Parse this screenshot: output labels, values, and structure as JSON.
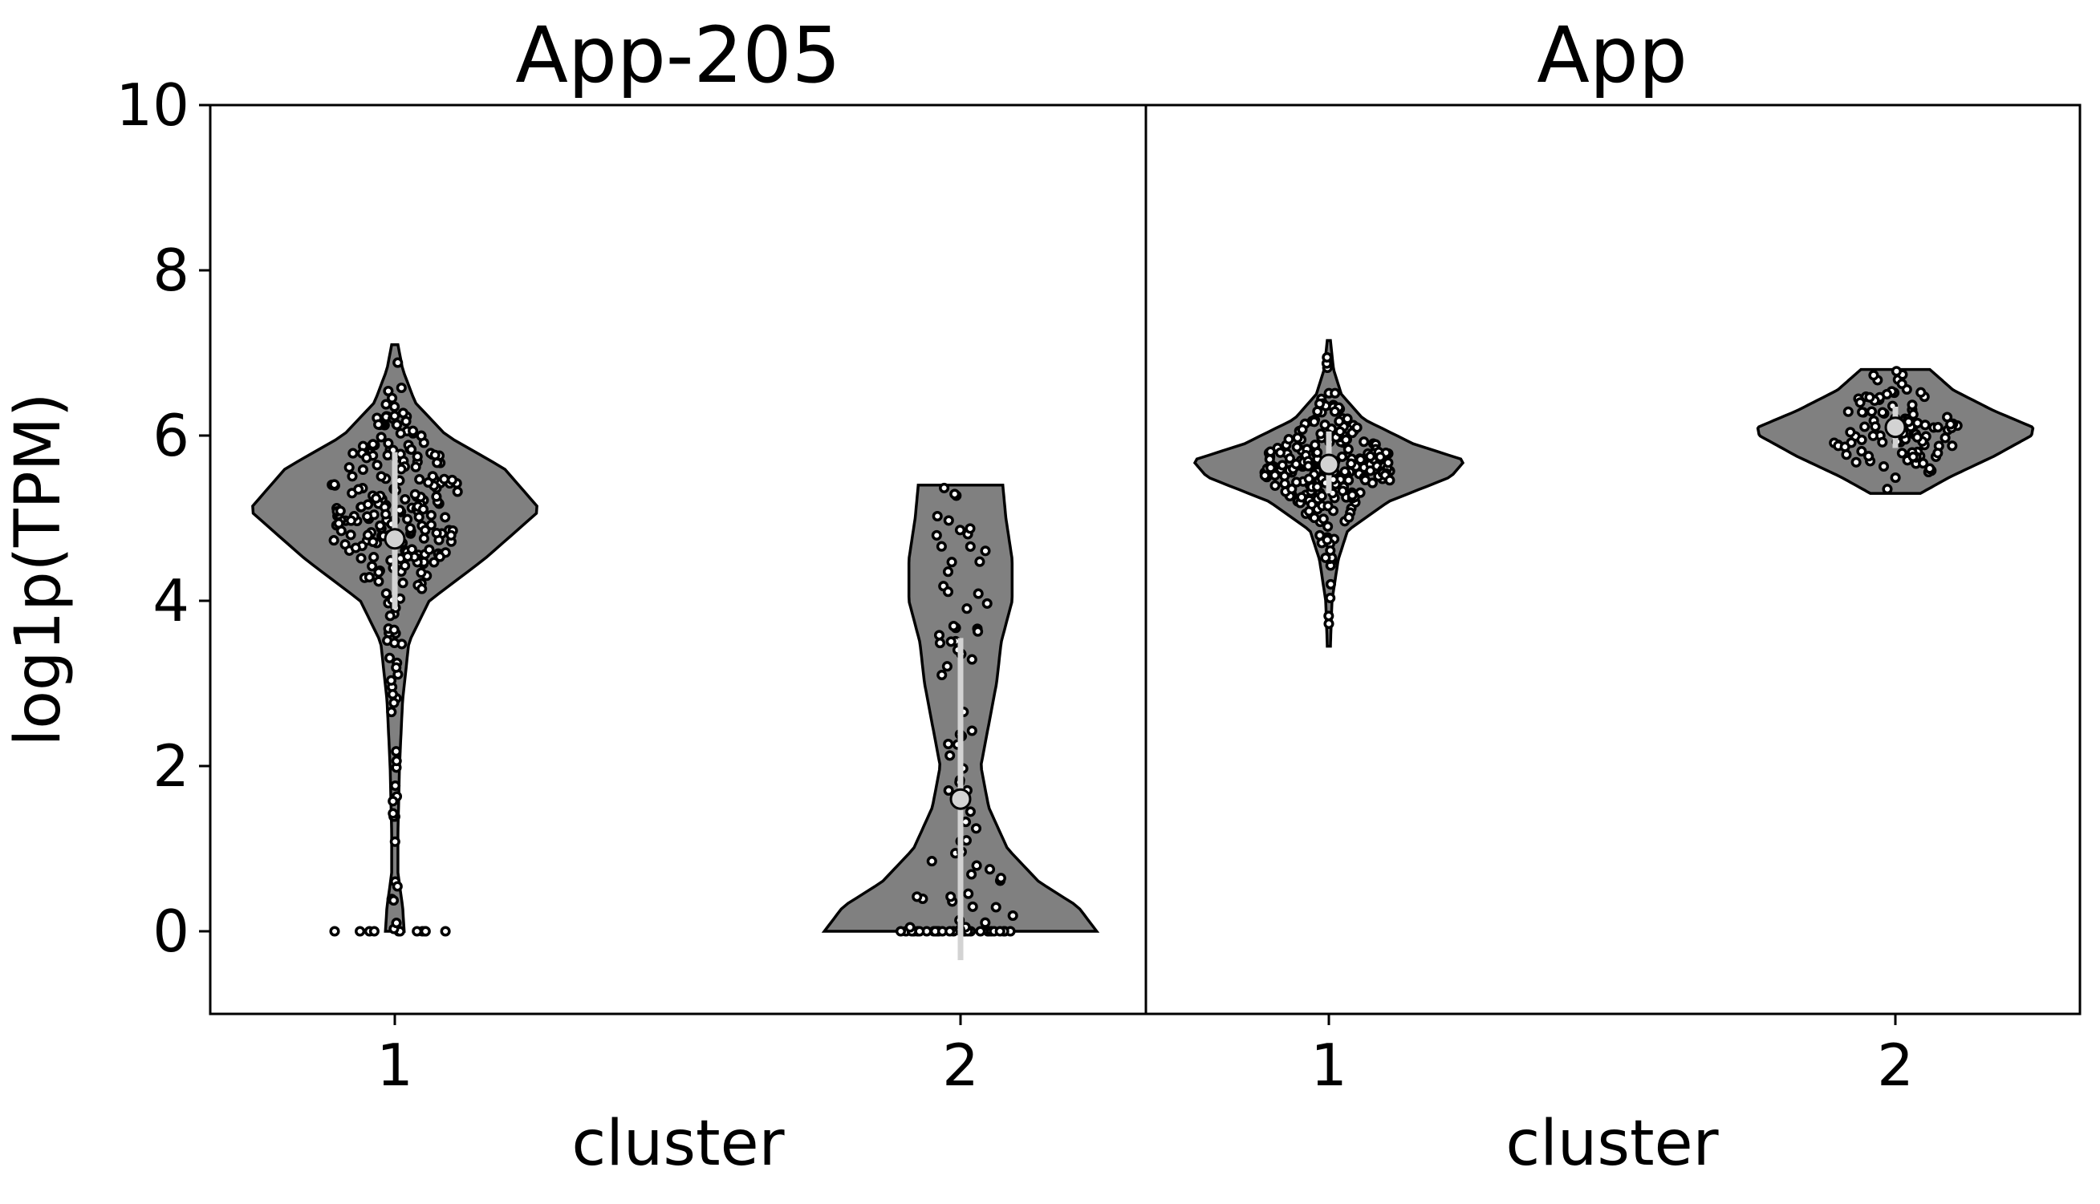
{
  "figure": {
    "ylabel": "log1p(TPM)",
    "violin_fill": "#808080",
    "point_fill": "#ffffff",
    "iqr_color": "#d3d3d3",
    "median_fill": "#d3d3d3"
  },
  "chart_data": [
    {
      "type": "violin",
      "title": "App-205",
      "xlabel": "cluster",
      "ylabel": "log1p(TPM)",
      "ylim": [
        -1,
        10
      ],
      "yticks": [
        0,
        2,
        4,
        6,
        8,
        10
      ],
      "categories": [
        "1",
        "2"
      ],
      "series": [
        {
          "category": "1",
          "median": 4.75,
          "iqr": [
            3.9,
            5.8
          ],
          "range": [
            0,
            7.1
          ],
          "n_points": 260,
          "n_zero": 11,
          "density": [
            [
              0,
              0.06
            ],
            [
              0.3,
              0.05
            ],
            [
              0.7,
              0.02
            ],
            [
              1.2,
              0.02
            ],
            [
              2.0,
              0.03
            ],
            [
              2.8,
              0.05
            ],
            [
              3.5,
              0.09
            ],
            [
              4.0,
              0.22
            ],
            [
              4.5,
              0.57
            ],
            [
              5.1,
              0.93
            ],
            [
              5.6,
              0.7
            ],
            [
              6.0,
              0.33
            ],
            [
              6.4,
              0.13
            ],
            [
              6.8,
              0.05
            ],
            [
              7.1,
              0.02
            ]
          ]
        },
        {
          "category": "2",
          "median": 1.6,
          "iqr": [
            -0.35,
            3.55
          ],
          "range": [
            0,
            5.4
          ],
          "n_points": 100,
          "n_zero": 28,
          "density": [
            [
              0,
              0.87
            ],
            [
              0.3,
              0.75
            ],
            [
              0.6,
              0.5
            ],
            [
              1.0,
              0.3
            ],
            [
              1.5,
              0.18
            ],
            [
              2.0,
              0.13
            ],
            [
              2.5,
              0.18
            ],
            [
              3.0,
              0.23
            ],
            [
              3.5,
              0.26
            ],
            [
              4.0,
              0.33
            ],
            [
              4.5,
              0.33
            ],
            [
              5.0,
              0.29
            ],
            [
              5.4,
              0.27
            ]
          ]
        }
      ]
    },
    {
      "type": "violin",
      "title": "App",
      "xlabel": "cluster",
      "ylim": [
        -1,
        10
      ],
      "categories": [
        "1",
        "2"
      ],
      "series": [
        {
          "category": "1",
          "median": 5.65,
          "iqr": [
            5.3,
            6.05
          ],
          "range": [
            3.45,
            7.15
          ],
          "n_points": 250,
          "n_zero": 0,
          "density": [
            [
              3.45,
              0.01
            ],
            [
              4.0,
              0.02
            ],
            [
              4.5,
              0.06
            ],
            [
              4.85,
              0.12
            ],
            [
              5.2,
              0.38
            ],
            [
              5.5,
              0.78
            ],
            [
              5.7,
              0.87
            ],
            [
              5.9,
              0.54
            ],
            [
              6.2,
              0.22
            ],
            [
              6.5,
              0.08
            ],
            [
              6.8,
              0.03
            ],
            [
              7.15,
              0.01
            ]
          ]
        },
        {
          "category": "2",
          "median": 6.1,
          "iqr": [
            5.85,
            6.35
          ],
          "range": [
            5.3,
            6.8
          ],
          "n_points": 100,
          "n_zero": 0,
          "density": [
            [
              5.3,
              0.16
            ],
            [
              5.5,
              0.35
            ],
            [
              5.75,
              0.63
            ],
            [
              6.0,
              0.87
            ],
            [
              6.1,
              0.88
            ],
            [
              6.3,
              0.63
            ],
            [
              6.55,
              0.37
            ],
            [
              6.8,
              0.22
            ]
          ]
        }
      ]
    }
  ]
}
